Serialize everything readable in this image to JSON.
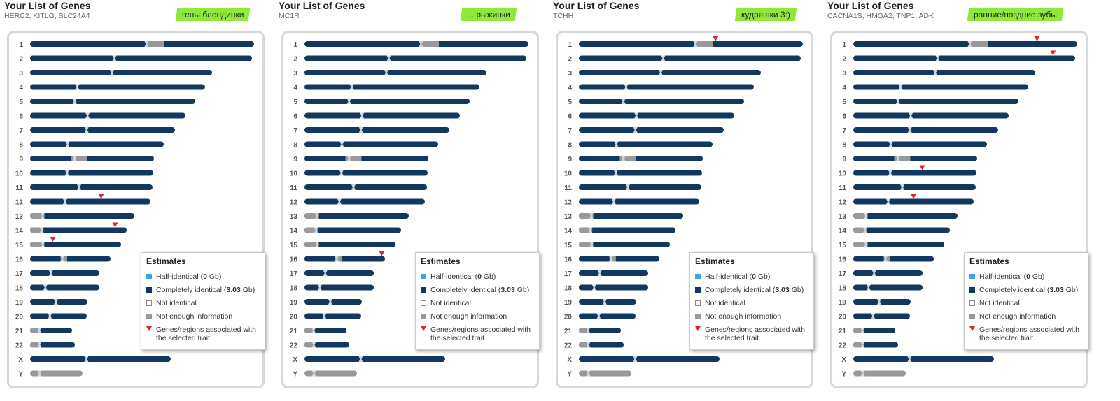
{
  "panels": [
    {
      "title": "Your List of Genes",
      "genes": "HERC2, KITLG, SLC24A4",
      "note": "гены блондинки",
      "markers": [
        {
          "chr": "12",
          "pos": 0.59
        },
        {
          "chr": "14",
          "pos": 0.88
        },
        {
          "chr": "15",
          "pos": 0.25
        }
      ]
    },
    {
      "title": "Your List of Genes",
      "genes": "MC1R",
      "note": "... рыжинки",
      "markers": [
        {
          "chr": "16",
          "pos": 0.96
        }
      ]
    },
    {
      "title": "Your List of Genes",
      "genes": "TCHH",
      "note": "кудряшки 3:)",
      "markers": [
        {
          "chr": "1",
          "pos": 0.61
        }
      ]
    },
    {
      "title": "Your List of Genes",
      "genes": "CACNA1S, HMGA2, TNP1, ADK",
      "note": "ранние/поздние зубы",
      "markers": [
        {
          "chr": "1",
          "pos": 0.82
        },
        {
          "chr": "2",
          "pos": 0.9
        },
        {
          "chr": "10",
          "pos": 0.56
        },
        {
          "chr": "12",
          "pos": 0.5
        }
      ]
    }
  ],
  "legend": {
    "title": "Estimates",
    "half_label": "Half-identical (",
    "half_value": "0",
    "half_unit": " Gb)",
    "full_label": "Completely identical (",
    "full_value": "3.03",
    "full_unit": " Gb)",
    "not_identical": "Not identical",
    "not_enough": "Not enough information",
    "genes_line1": "Genes/regions associated with",
    "genes_line2": "the selected trait."
  },
  "chromosome_labels": [
    "1",
    "2",
    "3",
    "4",
    "5",
    "6",
    "7",
    "8",
    "9",
    "10",
    "11",
    "12",
    "13",
    "14",
    "15",
    "16",
    "17",
    "18",
    "19",
    "20",
    "21",
    "22",
    "X",
    "Y"
  ],
  "colors": {
    "identical": "#13385f",
    "no_info": "#999999",
    "marker": "#e0262b",
    "note_bg": "#8fe83c"
  }
}
